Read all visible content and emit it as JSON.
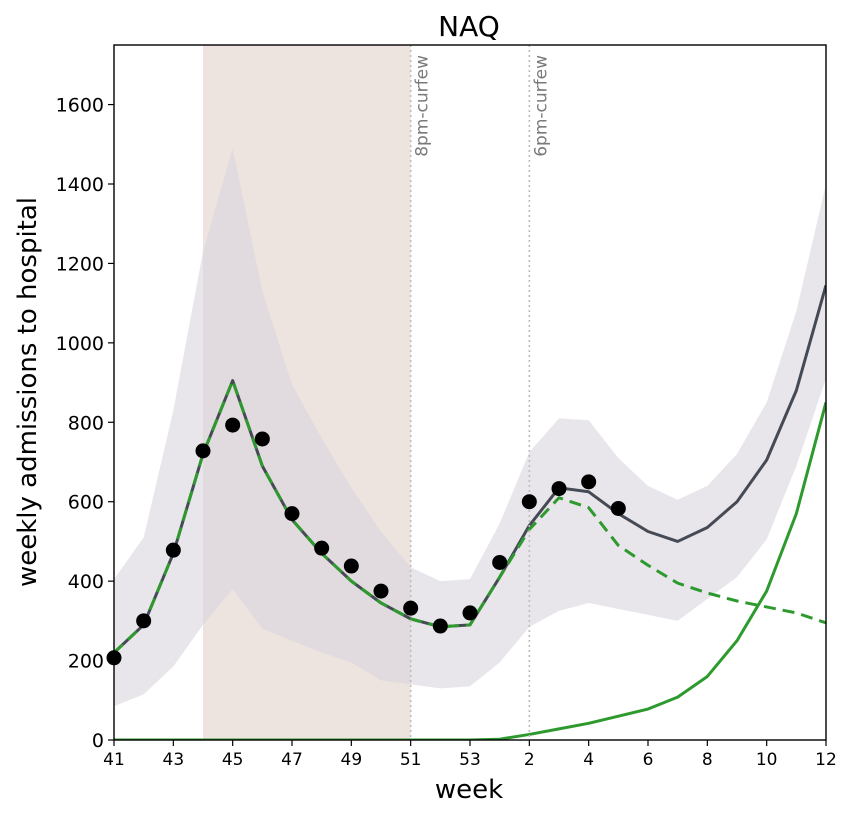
{
  "chart_data": {
    "type": "line",
    "title": "NAQ",
    "xlabel": "week",
    "ylabel": "weekly admissions to hospital",
    "x_index_range": [
      0,
      24
    ],
    "xlim_index": [
      0,
      24
    ],
    "ylim": [
      0,
      1750
    ],
    "x_ticks": [
      {
        "i": 0,
        "label": "41"
      },
      {
        "i": 2,
        "label": "43"
      },
      {
        "i": 4,
        "label": "45"
      },
      {
        "i": 6,
        "label": "47"
      },
      {
        "i": 8,
        "label": "49"
      },
      {
        "i": 10,
        "label": "51"
      },
      {
        "i": 12,
        "label": "53"
      },
      {
        "i": 14,
        "label": "2"
      },
      {
        "i": 16,
        "label": "4"
      },
      {
        "i": 18,
        "label": "6"
      },
      {
        "i": 20,
        "label": "8"
      },
      {
        "i": 22,
        "label": "10"
      },
      {
        "i": 24,
        "label": "12"
      }
    ],
    "y_ticks": [
      0,
      200,
      400,
      600,
      800,
      1000,
      1200,
      1400,
      1600
    ],
    "x_weeks": [
      "41",
      "42",
      "43",
      "44",
      "45",
      "46",
      "47",
      "48",
      "49",
      "50",
      "51",
      "52",
      "53",
      "1",
      "2",
      "3",
      "4",
      "5",
      "6",
      "7",
      "8",
      "9",
      "10",
      "11",
      "12"
    ],
    "shaded_period": {
      "from_index": 3,
      "to_index": 10,
      "color": "#e9ddd8"
    },
    "annotations": [
      {
        "label": "8pm-curfew",
        "x_index": 10
      },
      {
        "label": "6pm-curfew",
        "x_index": 14
      }
    ],
    "series": [
      {
        "kind": "band",
        "color": "#d9d6de",
        "upper": [
          405,
          510,
          830,
          1230,
          1490,
          1130,
          895,
          760,
          635,
          525,
          435,
          400,
          405,
          545,
          725,
          810,
          805,
          710,
          640,
          605,
          640,
          720,
          850,
          1080,
          1400
        ],
        "lower": [
          85,
          115,
          185,
          290,
          380,
          280,
          250,
          220,
          195,
          150,
          140,
          130,
          135,
          195,
          285,
          325,
          345,
          330,
          315,
          300,
          355,
          410,
          505,
          690,
          910
        ]
      },
      {
        "kind": "line",
        "style": "solid",
        "color": "#454a55",
        "values": [
          220,
          290,
          470,
          720,
          905,
          690,
          555,
          470,
          400,
          345,
          305,
          285,
          290,
          410,
          540,
          635,
          625,
          570,
          525,
          500,
          535,
          600,
          705,
          880,
          1145
        ]
      },
      {
        "kind": "line",
        "style": "dashed",
        "color": "#2e9a2e",
        "values": [
          220,
          290,
          470,
          720,
          905,
          690,
          555,
          470,
          400,
          345,
          305,
          285,
          290,
          410,
          530,
          610,
          585,
          490,
          440,
          395,
          370,
          350,
          335,
          320,
          295
        ]
      },
      {
        "kind": "line",
        "style": "solid",
        "color": "#2e9a2e",
        "values": [
          0,
          0,
          0,
          0,
          0,
          0,
          0,
          0,
          0,
          0,
          0,
          0,
          0,
          2,
          14,
          28,
          42,
          60,
          78,
          108,
          160,
          250,
          375,
          570,
          850
        ]
      },
      {
        "kind": "points",
        "color": "#000000",
        "x_index": [
          0,
          1,
          2,
          3,
          4,
          5,
          6,
          7,
          8,
          9,
          10,
          11,
          12,
          13,
          14,
          15,
          16,
          17
        ],
        "values": [
          207,
          300,
          478,
          728,
          793,
          758,
          570,
          483,
          438,
          375,
          332,
          287,
          320,
          447,
          600,
          633,
          650,
          583
        ]
      }
    ]
  }
}
